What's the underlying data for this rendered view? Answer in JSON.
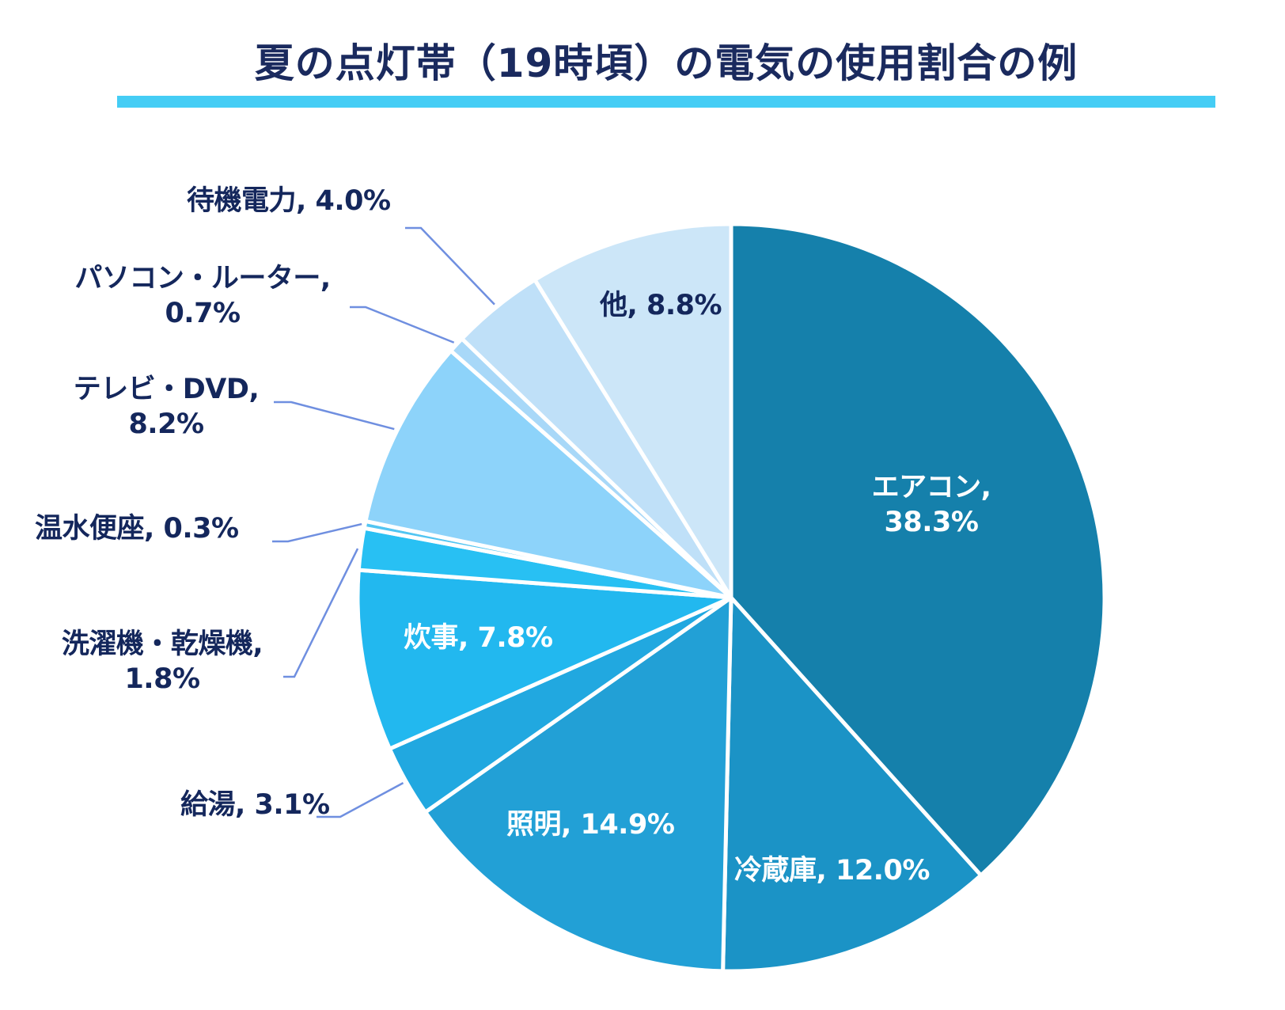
{
  "title": "夏の点灯帯（19時頃）の電気の使用割合の例",
  "accent_color": "#45cdf5",
  "chart_data": {
    "type": "pie",
    "title": "夏の点灯帯（19時頃）の電気の使用割合の例",
    "start": "top",
    "direction": "clockwise",
    "unit": "%",
    "slices": [
      {
        "name": "エアコン",
        "value": 38.3,
        "label_line1": "エアコン,",
        "label_line2": "38.3%",
        "color": "#1580ab",
        "label_color": "#ffffff"
      },
      {
        "name": "冷蔵庫",
        "value": 12.0,
        "label_line1": "冷蔵庫, 12.0%",
        "label_line2": "",
        "color": "#1b93c6",
        "label_color": "#ffffff"
      },
      {
        "name": "照明",
        "value": 14.9,
        "label_line1": "照明, 14.9%",
        "label_line2": "",
        "color": "#22a0d6",
        "label_color": "#ffffff"
      },
      {
        "name": "給湯",
        "value": 3.1,
        "label_line1": "給湯, 3.1%",
        "label_line2": "",
        "color": "#21a8e0",
        "label_color": "#14275c"
      },
      {
        "name": "炊事",
        "value": 7.8,
        "label_line1": "炊事, 7.8%",
        "label_line2": "",
        "color": "#22b8ef",
        "label_color": "#ffffff"
      },
      {
        "name": "洗濯機・乾燥機",
        "value": 1.8,
        "label_line1": "洗濯機・乾燥機,",
        "label_line2": "1.8%",
        "color": "#28c0f3",
        "label_color": "#14275c"
      },
      {
        "name": "温水便座",
        "value": 0.3,
        "label_line1": "温水便座, 0.3%",
        "label_line2": "",
        "color": "#52c5f2",
        "label_color": "#14275c"
      },
      {
        "name": "テレビ・DVD",
        "value": 8.2,
        "label_line1": "テレビ・DVD,",
        "label_line2": "8.2%",
        "color": "#8dd3fa",
        "label_color": "#14275c"
      },
      {
        "name": "パソコン・ルーター",
        "value": 0.7,
        "label_line1": "パソコン・ルーター,",
        "label_line2": "0.7%",
        "color": "#a8d8f8",
        "label_color": "#14275c"
      },
      {
        "name": "待機電力",
        "value": 4.0,
        "label_line1": "待機電力, 4.0%",
        "label_line2": "",
        "color": "#bfe0f8",
        "label_color": "#14275c"
      },
      {
        "name": "他",
        "value": 8.8,
        "label_line1": "他, 8.8%",
        "label_line2": "",
        "color": "#cce6f8",
        "label_color": "#14275c"
      }
    ],
    "leader_line_color": "#6f8fe0",
    "legend": "none"
  }
}
